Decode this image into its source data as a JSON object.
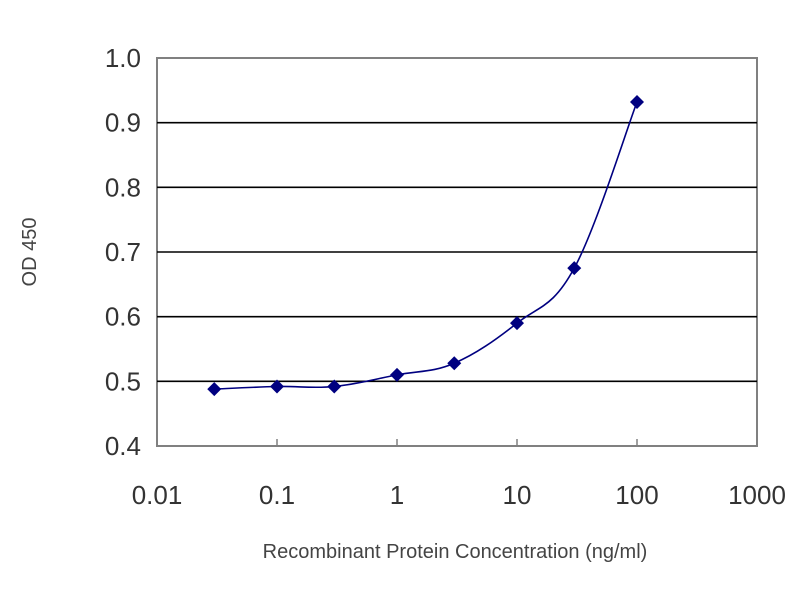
{
  "chart_data": {
    "type": "line",
    "title": "",
    "xlabel": "Recombinant Protein Concentration (ng/ml)",
    "ylabel": "OD 450",
    "xscale": "log",
    "xlim": [
      0.01,
      1000
    ],
    "ylim": [
      0.4,
      1.0
    ],
    "xticks": [
      "0.01",
      "0.1",
      "1",
      "10",
      "100",
      "1000"
    ],
    "yticks": [
      "0.4",
      "0.5",
      "0.6",
      "0.7",
      "0.8",
      "0.9",
      "1.0"
    ],
    "grid": "horizontal",
    "legend": "none",
    "series": [
      {
        "x": [
          0.03,
          0.1,
          0.3,
          1,
          3,
          10,
          30,
          100
        ],
        "y": [
          0.488,
          0.492,
          0.492,
          0.51,
          0.528,
          0.59,
          0.675,
          0.932
        ],
        "color": "#000080"
      }
    ]
  }
}
